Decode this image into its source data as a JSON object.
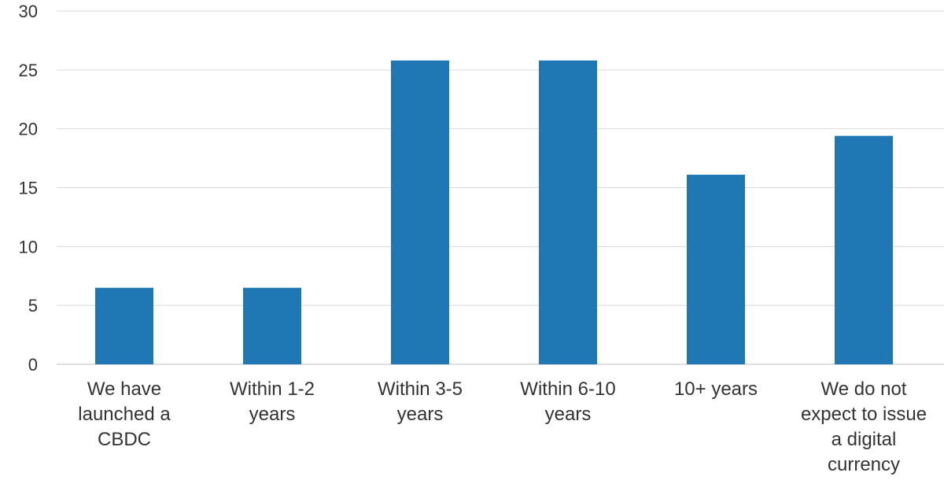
{
  "chart_data": {
    "type": "bar",
    "title": "",
    "xlabel": "",
    "ylabel": "",
    "ylim": [
      0,
      30
    ],
    "yticks": [
      "0",
      "5",
      "10",
      "15",
      "20",
      "25",
      "30"
    ],
    "grid": true,
    "legend": "none",
    "bar_color": "#1f77b4",
    "categories": [
      [
        "We have",
        "launched a",
        "CBDC"
      ],
      [
        "Within 1-2",
        "years"
      ],
      [
        "Within 3-5",
        "years"
      ],
      [
        "Within 6-10",
        "years"
      ],
      [
        "10+ years"
      ],
      [
        "We do not",
        "expect to issue",
        "a digital",
        "currency"
      ]
    ],
    "values": [
      6.5,
      6.5,
      25.8,
      25.8,
      16.1,
      19.4
    ]
  }
}
